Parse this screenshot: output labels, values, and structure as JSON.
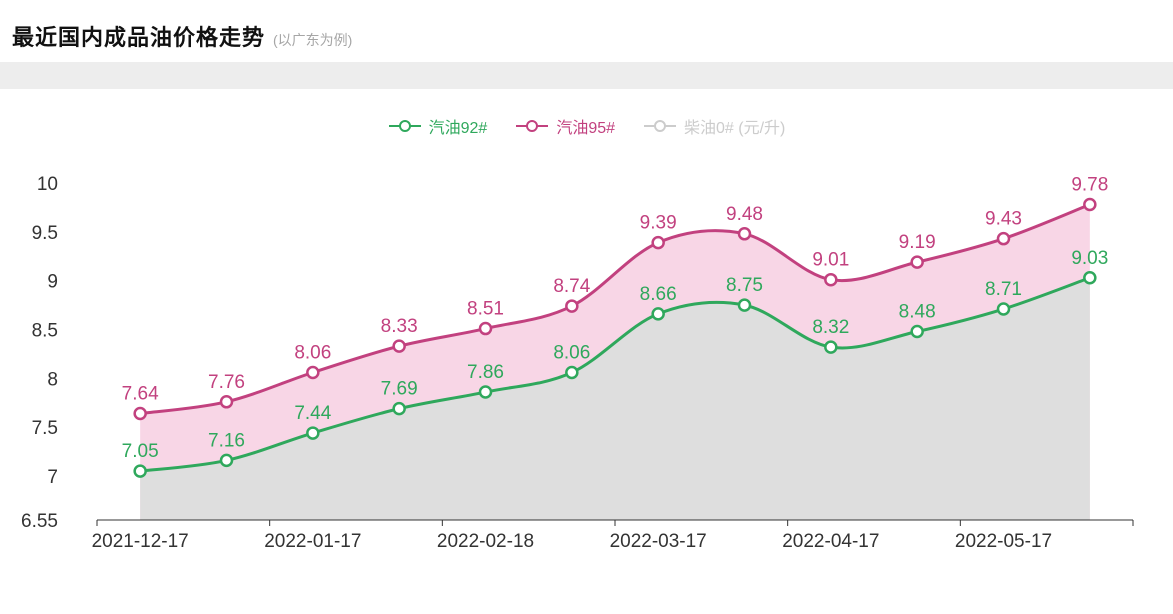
{
  "page": {
    "title": "最近国内成品油价格走势",
    "subtitle": "(以广东为例)"
  },
  "colors": {
    "background": "#ffffff",
    "divider_strip": "#ededed",
    "title_text": "#111111",
    "subtitle_text": "#a6a6a6",
    "axis_text": "#333333"
  },
  "chart_data": {
    "type": "line",
    "title": "最近国内成品油价格走势 (以广东为例)",
    "smooth": true,
    "grid": false,
    "legend_position": "top-center",
    "x_points": 12,
    "x_labels": [
      "2021-12-17",
      "2022-01-17",
      "2022-02-18",
      "2022-03-17",
      "2022-04-17",
      "2022-05-17"
    ],
    "x_label_indices": [
      0,
      2,
      4,
      6,
      8,
      10
    ],
    "y_ticks": [
      6.55,
      7,
      7.5,
      8,
      8.5,
      9,
      9.5,
      10
    ],
    "y_tick_labels": [
      "6.55",
      "7",
      "7.5",
      "8",
      "8.5",
      "9",
      "9.5",
      "10"
    ],
    "ylim": [
      6.55,
      10
    ],
    "axis_color": "#333333",
    "disabled_color": "#cccccc",
    "series": [
      {
        "name": "汽油92#",
        "enabled": true,
        "color": "#2fa85c",
        "area_color": "#dedede",
        "values": [
          7.05,
          7.16,
          7.44,
          7.69,
          7.86,
          8.06,
          8.66,
          8.75,
          8.32,
          8.48,
          8.71,
          9.03
        ]
      },
      {
        "name": "汽油95#",
        "enabled": true,
        "color": "#c2417f",
        "area_color": "#f8d6e6",
        "values": [
          7.64,
          7.76,
          8.06,
          8.33,
          8.51,
          8.74,
          9.39,
          9.48,
          9.01,
          9.19,
          9.43,
          9.78
        ]
      },
      {
        "name": "柴油0# (元/升)",
        "enabled": false,
        "color": "#cccccc",
        "area_color": "#eeeeee",
        "values": []
      }
    ]
  }
}
